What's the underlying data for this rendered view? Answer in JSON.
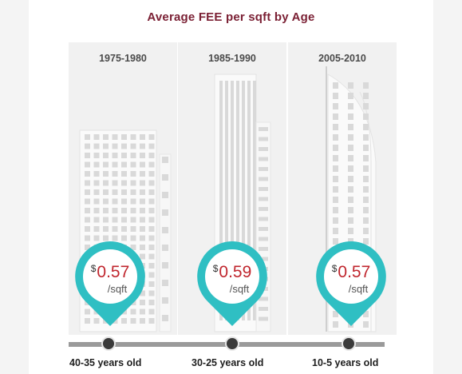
{
  "title": "Average FEE per sqft by Age",
  "currency_symbol": "$",
  "unit": "/sqft",
  "colors": {
    "title": "#7a1f33",
    "pin": "#2fbfc3",
    "price": "#c0262e",
    "timeline": "#9a9a9a"
  },
  "periods": [
    {
      "range": "1975-1980",
      "price": "0.57",
      "age": "40-35 years old"
    },
    {
      "range": "1985-1990",
      "price": "0.59",
      "age": "30-25 years old"
    },
    {
      "range": "2005-2010",
      "price": "0.57",
      "age": "10-5 years old"
    }
  ]
}
